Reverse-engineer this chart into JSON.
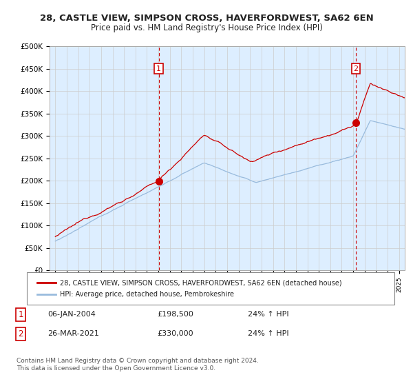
{
  "title": "28, CASTLE VIEW, SIMPSON CROSS, HAVERFORDWEST, SA62 6EN",
  "subtitle": "Price paid vs. HM Land Registry's House Price Index (HPI)",
  "ylabel_ticks": [
    "£0",
    "£50K",
    "£100K",
    "£150K",
    "£200K",
    "£250K",
    "£300K",
    "£350K",
    "£400K",
    "£450K",
    "£500K"
  ],
  "ytick_values": [
    0,
    50000,
    100000,
    150000,
    200000,
    250000,
    300000,
    350000,
    400000,
    450000,
    500000
  ],
  "ylim": [
    0,
    500000
  ],
  "xlim_start": 1994.5,
  "xlim_end": 2025.5,
  "red_color": "#cc0000",
  "blue_color": "#99bbdd",
  "dashed_color": "#cc0000",
  "bg_fill_color": "#ddeeff",
  "marker1_x": 2004.03,
  "marker1_y": 198500,
  "marker2_x": 2021.23,
  "marker2_y": 330000,
  "vline1_x": 2004.03,
  "vline2_x": 2021.23,
  "legend_line1": "28, CASTLE VIEW, SIMPSON CROSS, HAVERFORDWEST, SA62 6EN (detached house)",
  "legend_line2": "HPI: Average price, detached house, Pembrokeshire",
  "table_row1": [
    "1",
    "06-JAN-2004",
    "£198,500",
    "24% ↑ HPI"
  ],
  "table_row2": [
    "2",
    "26-MAR-2021",
    "£330,000",
    "24% ↑ HPI"
  ],
  "footer": "Contains HM Land Registry data © Crown copyright and database right 2024.\nThis data is licensed under the Open Government Licence v3.0.",
  "background_color": "#ffffff",
  "grid_color": "#cccccc"
}
